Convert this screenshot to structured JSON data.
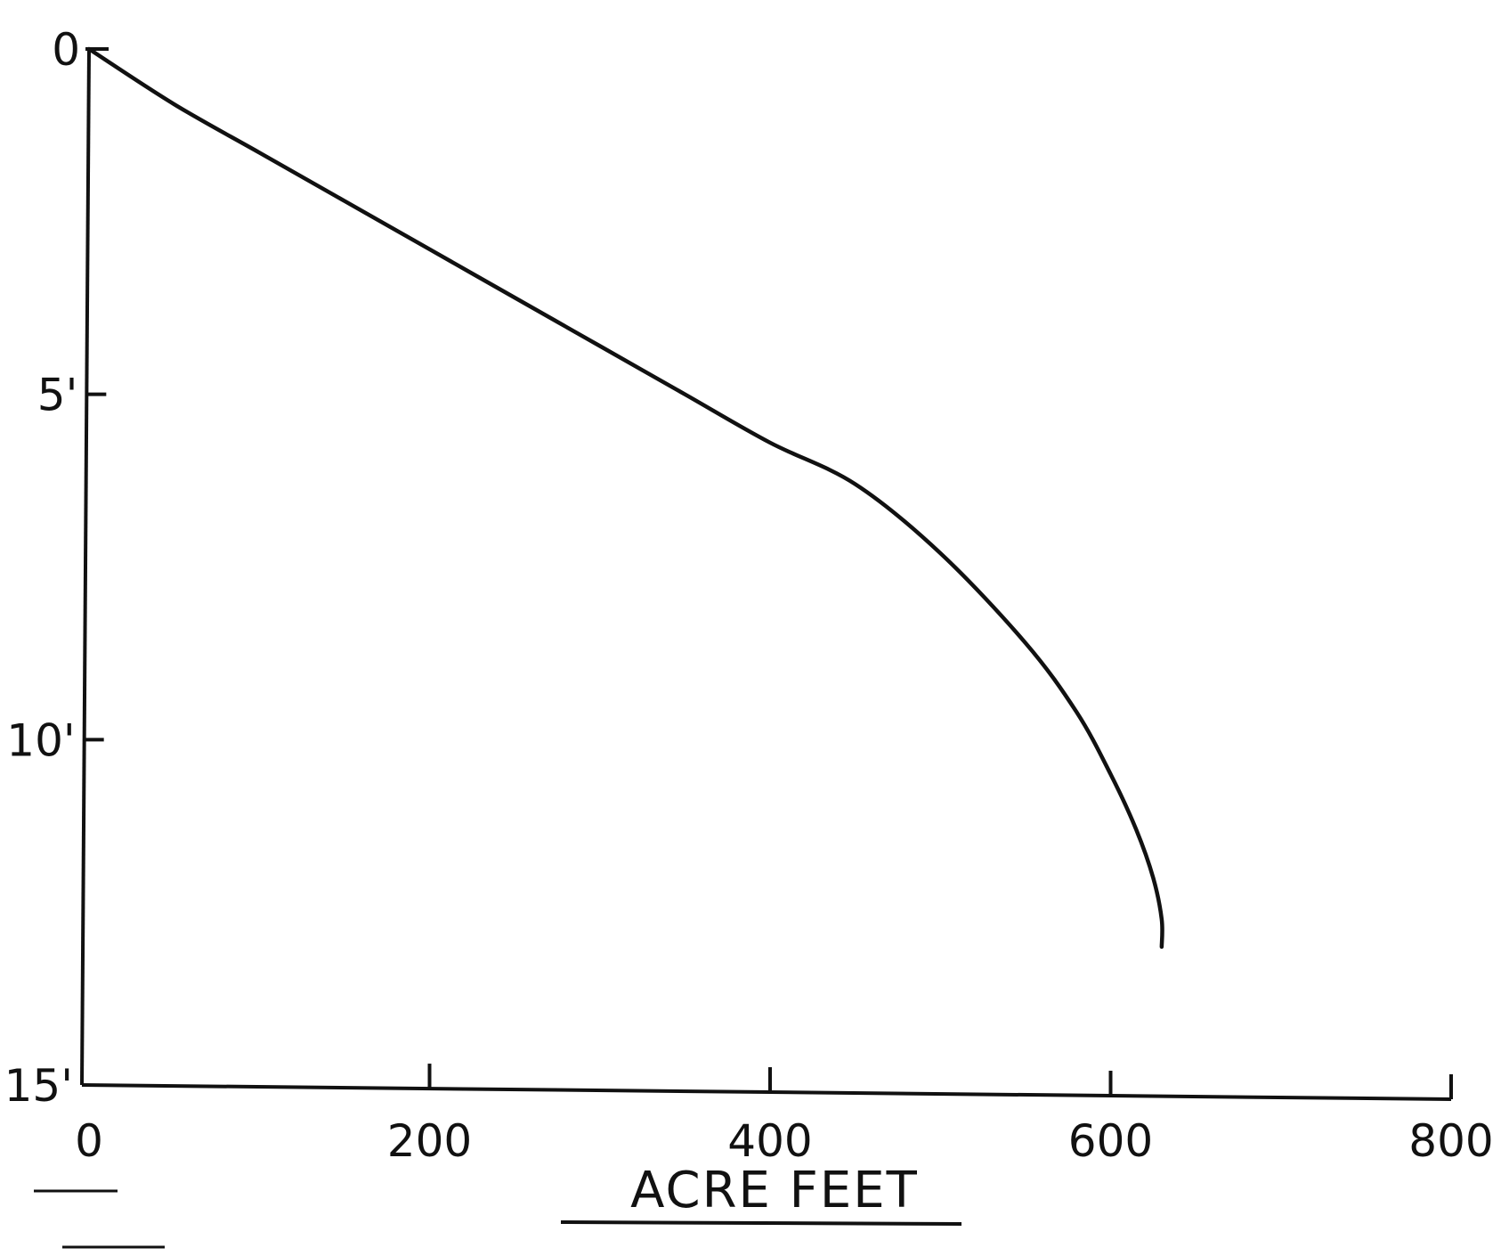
{
  "chart_data": {
    "type": "line",
    "title": "",
    "xlabel": "ACRE FEET",
    "ylabel": "",
    "xlim": [
      0,
      800
    ],
    "ylim": [
      0,
      15
    ],
    "y_inverted": true,
    "x_ticks": [
      {
        "value": 0,
        "label": "0"
      },
      {
        "value": 200,
        "label": "200"
      },
      {
        "value": 400,
        "label": "400"
      },
      {
        "value": 600,
        "label": "600"
      },
      {
        "value": 800,
        "label": "800"
      }
    ],
    "y_ticks": [
      {
        "value": 0,
        "label": "0"
      },
      {
        "value": 5,
        "label": "5'"
      },
      {
        "value": 10,
        "label": "10'"
      },
      {
        "value": 15,
        "label": "15'"
      }
    ],
    "grid": false,
    "series": [
      {
        "x": [
          0,
          50,
          100,
          150,
          200,
          250,
          300,
          350,
          400,
          450,
          500,
          550,
          580,
          600,
          615,
          625,
          630,
          630
        ],
        "y": [
          0,
          0.8,
          1.5,
          2.2,
          2.9,
          3.6,
          4.3,
          5.0,
          5.7,
          6.3,
          7.3,
          8.6,
          9.6,
          10.5,
          11.3,
          12.0,
          12.6,
          13.0
        ]
      }
    ],
    "colors": {
      "line": "#111111",
      "background": "#ffffff"
    }
  }
}
